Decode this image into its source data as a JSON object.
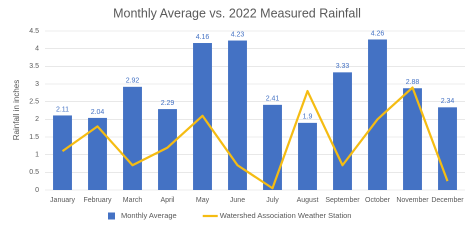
{
  "chart_data": {
    "type": "bar",
    "title": "Monthly Average vs. 2022 Measured Rainfall",
    "y_label": "Rainfall in inches",
    "categories": [
      "January",
      "February",
      "March",
      "April",
      "May",
      "June",
      "July",
      "August",
      "September",
      "October",
      "November",
      "December"
    ],
    "series": [
      {
        "name": "Monthly Average",
        "type": "bar",
        "color": "#4472c4",
        "values": [
          2.11,
          2.04,
          2.92,
          2.29,
          4.16,
          4.23,
          2.41,
          1.9,
          3.33,
          4.26,
          2.88,
          2.34
        ]
      },
      {
        "name": "Watershed Association Weather Station",
        "type": "line",
        "color": "#f5bc12",
        "values": [
          1.1,
          1.8,
          0.7,
          1.2,
          2.1,
          0.7,
          0.05,
          2.8,
          0.7,
          2.0,
          2.9,
          0.25
        ]
      }
    ],
    "ylim": [
      0,
      4.5
    ],
    "yticks": [
      0,
      0.5,
      1,
      1.5,
      2,
      2.5,
      3,
      3.5,
      4,
      4.5
    ],
    "grid": true,
    "legend": "bottom"
  }
}
